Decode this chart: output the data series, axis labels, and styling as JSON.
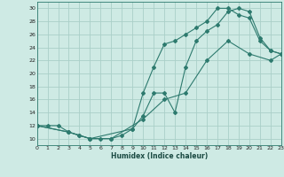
{
  "title": "",
  "xlabel": "Humidex (Indice chaleur)",
  "bg_color": "#ceeae4",
  "line_color": "#2d7a6e",
  "grid_color": "#aacfc8",
  "xlim": [
    0,
    23
  ],
  "ylim": [
    9,
    31
  ],
  "xticks": [
    0,
    1,
    2,
    3,
    4,
    5,
    6,
    7,
    8,
    9,
    10,
    11,
    12,
    13,
    14,
    15,
    16,
    17,
    18,
    19,
    20,
    21,
    22,
    23
  ],
  "yticks": [
    10,
    12,
    14,
    16,
    18,
    20,
    22,
    24,
    26,
    28,
    30
  ],
  "curve1_x": [
    0,
    1,
    2,
    3,
    4,
    5,
    6,
    7,
    8,
    9,
    10,
    11,
    12,
    13,
    14,
    15,
    16,
    17,
    18,
    19,
    20,
    21,
    22,
    23
  ],
  "curve1_y": [
    12,
    12,
    12,
    11,
    10.5,
    10,
    10,
    10,
    10.5,
    11.5,
    17,
    21,
    24.5,
    25,
    26,
    27,
    28,
    30,
    30,
    29,
    28.5,
    25,
    23.5,
    23
  ],
  "curve2_x": [
    0,
    3,
    4,
    5,
    9,
    10,
    11,
    12,
    13,
    14,
    15,
    16,
    17,
    18,
    19,
    20,
    21,
    22,
    23
  ],
  "curve2_y": [
    12,
    11,
    10.5,
    10,
    11.5,
    13.5,
    17,
    17,
    14,
    21,
    25,
    26.5,
    27.5,
    29.5,
    30,
    29.5,
    25.5,
    23.5,
    23
  ],
  "curve3_x": [
    0,
    3,
    5,
    7,
    10,
    12,
    14,
    16,
    18,
    20,
    22,
    23
  ],
  "curve3_y": [
    12,
    11,
    10,
    10,
    13,
    16,
    17,
    22,
    25,
    23,
    22,
    23
  ]
}
